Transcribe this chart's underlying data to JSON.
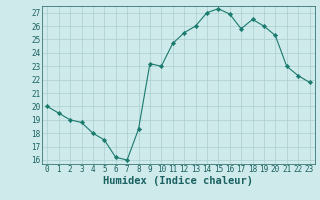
{
  "xlabel": "Humidex (Indice chaleur)",
  "x": [
    0,
    1,
    2,
    3,
    4,
    5,
    6,
    7,
    8,
    9,
    10,
    11,
    12,
    13,
    14,
    15,
    16,
    17,
    18,
    19,
    20,
    21,
    22,
    23
  ],
  "y": [
    20,
    19.5,
    19,
    18.8,
    18,
    17.5,
    16.2,
    16,
    18.3,
    23.2,
    23,
    24.7,
    25.5,
    26,
    27,
    27.3,
    26.9,
    25.8,
    26.5,
    26,
    25.3,
    23,
    22.3,
    21.8
  ],
  "line_color": "#1a7a6e",
  "marker": "D",
  "marker_size": 2.2,
  "bg_color": "#ceeaea",
  "grid_color": "#aacece",
  "ylim": [
    15.7,
    27.5
  ],
  "yticks": [
    16,
    17,
    18,
    19,
    20,
    21,
    22,
    23,
    24,
    25,
    26,
    27
  ],
  "xticks": [
    0,
    1,
    2,
    3,
    4,
    5,
    6,
    7,
    8,
    9,
    10,
    11,
    12,
    13,
    14,
    15,
    16,
    17,
    18,
    19,
    20,
    21,
    22,
    23
  ],
  "tick_fontsize": 5.5,
  "xlabel_fontsize": 7.5,
  "label_color": "#1a6060"
}
